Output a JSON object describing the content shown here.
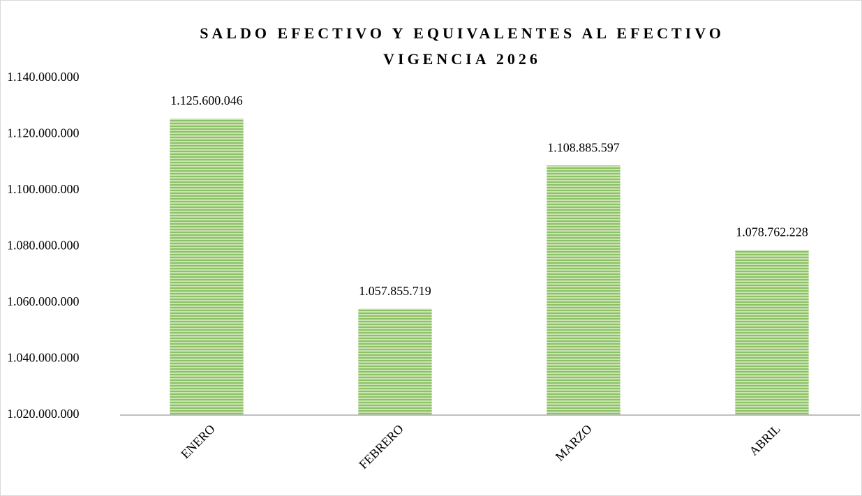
{
  "chart_data": {
    "type": "bar",
    "title": [
      "SALDO EFECTIVO Y EQUIVALENTES AL EFECTIVO",
      "VIGENCIA 2026"
    ],
    "categories": [
      "ENERO",
      "FEBRERO",
      "MARZO",
      "ABRIL"
    ],
    "values": [
      1125600046,
      1057855719,
      1108885597,
      1078762228
    ],
    "value_labels": [
      "1.125.600.046",
      "1.057.855.719",
      "1.108.885.597",
      "1.078.762.228"
    ],
    "color": "#8cc265",
    "ylim": [
      1020000000,
      1140000000
    ],
    "yticks": [
      {
        "value": 1020000000,
        "label": "1.020.000.000"
      },
      {
        "value": 1040000000,
        "label": "1.040.000.000"
      },
      {
        "value": 1060000000,
        "label": "1.060.000.000"
      },
      {
        "value": 1080000000,
        "label": "1.080.000.000"
      },
      {
        "value": 1100000000,
        "label": "1.100.000.000"
      },
      {
        "value": 1120000000,
        "label": "1.120.000.000"
      },
      {
        "value": 1140000000,
        "label": "1.140.000.000"
      }
    ],
    "grid": false
  }
}
